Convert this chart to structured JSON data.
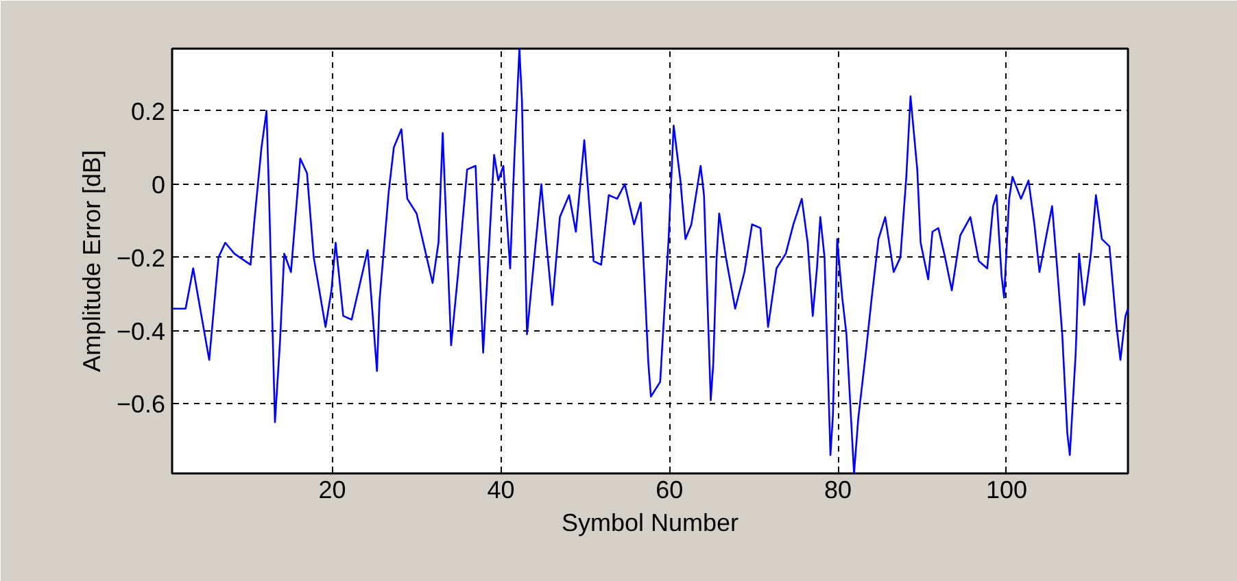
{
  "chart_data": {
    "type": "line",
    "xlabel": "Symbol Number",
    "ylabel": "Amplitude Error [dB]",
    "xlim": [
      1,
      114.4
    ],
    "ylim": [
      -0.79,
      0.37
    ],
    "xticks": [
      20,
      40,
      60,
      80,
      100
    ],
    "yticks": [
      -0.6,
      -0.4,
      -0.2,
      0,
      0.2
    ],
    "grid": true,
    "series": [
      {
        "color": "#0000ff",
        "x": [
          1,
          2.6,
          3.5,
          4.1,
          5.4,
          6.5,
          7.3,
          8.4,
          10.3,
          10.8,
          11.6,
          12.2,
          12.5,
          13.2,
          13.8,
          14.3,
          15.1,
          16.2,
          17.0,
          17.8,
          19.2,
          19.9,
          20.4,
          21.3,
          22.3,
          24.2,
          25.3,
          25.6,
          26.7,
          27.3,
          28.2,
          28.9,
          30.0,
          31.9,
          32.6,
          33.1,
          34.1,
          34.9,
          36.0,
          37.0,
          37.9,
          39.2,
          39.7,
          40.3,
          41.1,
          41.6,
          42.2,
          42.5,
          43.1,
          43.8,
          44.8,
          45.4,
          46.1,
          47.0,
          48.1,
          48.9,
          49.9,
          51.0,
          51.9,
          52.8,
          53.8,
          54.7,
          55.8,
          56.6,
          57.5,
          57.8,
          58.9,
          59.9,
          60.5,
          61.3,
          61.9,
          62.6,
          63.7,
          64.1,
          64.9,
          65.2,
          65.6,
          65.9,
          66.7,
          67.8,
          68.9,
          69.8,
          70.8,
          71.7,
          72.7,
          73.8,
          74.7,
          75.7,
          76.4,
          77.0,
          77.5,
          77.9,
          78.4,
          79.1,
          79.4,
          79.9,
          80.5,
          81.0,
          81.9,
          82.4,
          83.3,
          84.0,
          84.8,
          85.6,
          86.6,
          87.4,
          88.1,
          88.6,
          89.4,
          89.8,
          90.7,
          91.2,
          91.9,
          92.7,
          93.5,
          94.5,
          95.7,
          96.7,
          97.7,
          98.4,
          98.8,
          99.4,
          99.7,
          100.3,
          100.7,
          101.7,
          102.6,
          103.3,
          103.9,
          104.8,
          105.4,
          106.0,
          106.6,
          107.2,
          107.5,
          108.2,
          108.6,
          109.2,
          110.0,
          110.6,
          111.3,
          112.2,
          113.0,
          113.5,
          114.1,
          114.4
        ],
        "values": [
          -0.34,
          -0.34,
          -0.23,
          -0.31,
          -0.48,
          -0.2,
          -0.16,
          -0.19,
          -0.22,
          -0.09,
          0.1,
          0.2,
          -0.03,
          -0.65,
          -0.43,
          -0.19,
          -0.24,
          0.07,
          0.03,
          -0.2,
          -0.39,
          -0.29,
          -0.16,
          -0.36,
          -0.37,
          -0.18,
          -0.51,
          -0.32,
          -0.02,
          0.1,
          0.15,
          -0.04,
          -0.08,
          -0.27,
          -0.16,
          0.14,
          -0.44,
          -0.25,
          0.04,
          0.05,
          -0.46,
          0.08,
          0.01,
          0.05,
          -0.23,
          0.07,
          0.37,
          0.23,
          -0.41,
          -0.24,
          0,
          -0.16,
          -0.33,
          -0.09,
          -0.03,
          -0.13,
          0.12,
          -0.21,
          -0.22,
          -0.03,
          -0.04,
          0,
          -0.11,
          -0.05,
          -0.49,
          -0.58,
          -0.54,
          -0.15,
          0.16,
          0.01,
          -0.15,
          -0.11,
          0.05,
          -0.03,
          -0.59,
          -0.49,
          -0.2,
          -0.08,
          -0.2,
          -0.34,
          -0.24,
          -0.11,
          -0.12,
          -0.39,
          -0.23,
          -0.19,
          -0.11,
          -0.04,
          -0.16,
          -0.36,
          -0.23,
          -0.09,
          -0.2,
          -0.74,
          -0.63,
          -0.15,
          -0.31,
          -0.41,
          -0.79,
          -0.64,
          -0.46,
          -0.31,
          -0.15,
          -0.09,
          -0.24,
          -0.2,
          0.02,
          0.24,
          0.04,
          -0.16,
          -0.26,
          -0.13,
          -0.12,
          -0.2,
          -0.29,
          -0.14,
          -0.09,
          -0.21,
          -0.23,
          -0.06,
          -0.03,
          -0.25,
          -0.31,
          -0.04,
          0.02,
          -0.04,
          0.01,
          -0.11,
          -0.24,
          -0.13,
          -0.06,
          -0.23,
          -0.41,
          -0.68,
          -0.74,
          -0.46,
          -0.19,
          -0.33,
          -0.19,
          -0.03,
          -0.15,
          -0.17,
          -0.38,
          -0.48,
          -0.36,
          -0.34
        ]
      }
    ]
  }
}
